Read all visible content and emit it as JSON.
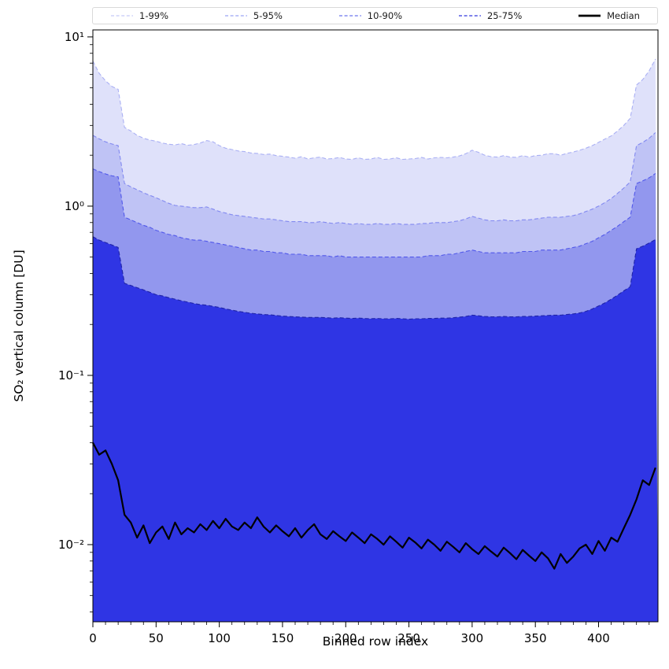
{
  "axes": {
    "xlabel": "Binned row index",
    "ylabel": "SO₂ vertical column [DU]"
  },
  "legend": [
    {
      "label": "1-99%",
      "color": "#c5caf7",
      "dash": true,
      "width": 1.3
    },
    {
      "label": "5-95%",
      "color": "#9ba3f3",
      "dash": true,
      "width": 1.3
    },
    {
      "label": "10-90%",
      "color": "#6a73ee",
      "dash": true,
      "width": 1.3
    },
    {
      "label": "25-75%",
      "color": "#3038dd",
      "dash": true,
      "width": 1.3
    },
    {
      "label": "Median",
      "color": "#000000",
      "dash": false,
      "width": 2.8
    }
  ],
  "chart_data": {
    "type": "area",
    "title": "",
    "xlabel": "Binned row index",
    "ylabel": "SO₂ vertical column [DU]",
    "yscale": "log",
    "grid": false,
    "legend_position": "top",
    "xlim": [
      0,
      447
    ],
    "ylim": [
      0.0035,
      11
    ],
    "x_ticks": [
      0,
      50,
      100,
      150,
      200,
      250,
      300,
      350,
      400
    ],
    "y_ticks": [
      {
        "value": 0.01,
        "label": "10⁻²"
      },
      {
        "value": 0.1,
        "label": "10⁻¹"
      },
      {
        "value": 1,
        "label": "10⁰"
      },
      {
        "value": 10,
        "label": "10¹"
      }
    ],
    "x": [
      0,
      5,
      10,
      15,
      20,
      25,
      30,
      35,
      40,
      45,
      50,
      55,
      60,
      65,
      70,
      75,
      80,
      85,
      90,
      95,
      100,
      105,
      110,
      115,
      120,
      125,
      130,
      135,
      140,
      145,
      150,
      155,
      160,
      165,
      170,
      175,
      180,
      185,
      190,
      195,
      200,
      205,
      210,
      215,
      220,
      225,
      230,
      235,
      240,
      245,
      250,
      255,
      260,
      265,
      270,
      275,
      280,
      285,
      290,
      295,
      300,
      305,
      310,
      315,
      320,
      325,
      330,
      335,
      340,
      345,
      350,
      355,
      360,
      365,
      370,
      375,
      380,
      385,
      390,
      395,
      400,
      405,
      410,
      415,
      420,
      425,
      430,
      435,
      440,
      445
    ],
    "series": [
      {
        "name": "1-99% upper",
        "legend": "1-99%",
        "fill": "#dfe1fa",
        "edge": "#aab0f4",
        "values": [
          7.2,
          6.1,
          5.5,
          5.1,
          4.9,
          2.92,
          2.78,
          2.62,
          2.52,
          2.46,
          2.42,
          2.36,
          2.32,
          2.3,
          2.34,
          2.29,
          2.31,
          2.36,
          2.44,
          2.4,
          2.28,
          2.2,
          2.16,
          2.12,
          2.1,
          2.06,
          2.05,
          2.02,
          2.03,
          1.99,
          1.97,
          1.95,
          1.92,
          1.96,
          1.9,
          1.93,
          1.95,
          1.9,
          1.91,
          1.94,
          1.9,
          1.89,
          1.93,
          1.89,
          1.9,
          1.94,
          1.89,
          1.9,
          1.93,
          1.89,
          1.9,
          1.91,
          1.94,
          1.9,
          1.93,
          1.94,
          1.93,
          1.95,
          1.98,
          2.04,
          2.14,
          2.08,
          2.0,
          1.96,
          1.95,
          1.99,
          1.95,
          1.94,
          1.99,
          1.95,
          1.99,
          2.0,
          2.04,
          2.04,
          2.0,
          2.05,
          2.09,
          2.14,
          2.2,
          2.28,
          2.38,
          2.49,
          2.6,
          2.78,
          3.0,
          3.3,
          5.2,
          5.6,
          6.3,
          7.4
        ]
      },
      {
        "name": "5-95% upper",
        "legend": "5-95%",
        "fill": "#bfc3f5",
        "edge": "#8289f0",
        "values": [
          2.62,
          2.5,
          2.4,
          2.33,
          2.28,
          1.36,
          1.3,
          1.25,
          1.2,
          1.16,
          1.12,
          1.08,
          1.04,
          1.01,
          1.0,
          0.99,
          0.98,
          0.98,
          0.99,
          0.96,
          0.93,
          0.91,
          0.89,
          0.88,
          0.87,
          0.86,
          0.85,
          0.84,
          0.84,
          0.83,
          0.82,
          0.81,
          0.81,
          0.81,
          0.8,
          0.8,
          0.81,
          0.8,
          0.79,
          0.8,
          0.79,
          0.78,
          0.79,
          0.78,
          0.78,
          0.79,
          0.78,
          0.78,
          0.79,
          0.78,
          0.78,
          0.78,
          0.79,
          0.79,
          0.8,
          0.8,
          0.8,
          0.81,
          0.82,
          0.84,
          0.87,
          0.85,
          0.83,
          0.82,
          0.82,
          0.83,
          0.82,
          0.82,
          0.83,
          0.83,
          0.84,
          0.85,
          0.86,
          0.86,
          0.86,
          0.87,
          0.88,
          0.9,
          0.93,
          0.96,
          1.0,
          1.05,
          1.11,
          1.19,
          1.28,
          1.39,
          2.28,
          2.38,
          2.52,
          2.72
        ]
      },
      {
        "name": "10-90% upper",
        "legend": "10-90%",
        "fill": "#9297ee",
        "edge": "#5158ea",
        "values": [
          1.66,
          1.6,
          1.55,
          1.51,
          1.49,
          0.86,
          0.83,
          0.8,
          0.77,
          0.75,
          0.72,
          0.7,
          0.68,
          0.67,
          0.65,
          0.64,
          0.63,
          0.63,
          0.62,
          0.61,
          0.6,
          0.59,
          0.58,
          0.57,
          0.56,
          0.55,
          0.55,
          0.54,
          0.54,
          0.53,
          0.53,
          0.52,
          0.52,
          0.52,
          0.51,
          0.51,
          0.51,
          0.51,
          0.5,
          0.51,
          0.5,
          0.5,
          0.5,
          0.5,
          0.5,
          0.5,
          0.5,
          0.5,
          0.5,
          0.5,
          0.5,
          0.5,
          0.5,
          0.51,
          0.51,
          0.51,
          0.52,
          0.52,
          0.53,
          0.54,
          0.55,
          0.54,
          0.53,
          0.53,
          0.53,
          0.53,
          0.53,
          0.53,
          0.54,
          0.54,
          0.54,
          0.55,
          0.55,
          0.55,
          0.55,
          0.56,
          0.57,
          0.58,
          0.6,
          0.62,
          0.65,
          0.68,
          0.72,
          0.76,
          0.81,
          0.86,
          1.36,
          1.41,
          1.47,
          1.56
        ]
      },
      {
        "name": "25-75% upper",
        "legend": "25-75%",
        "fill": "#2f35e4",
        "edge": "#1f24a8",
        "values": [
          0.66,
          0.63,
          0.61,
          0.59,
          0.57,
          0.35,
          0.34,
          0.33,
          0.32,
          0.31,
          0.3,
          0.295,
          0.288,
          0.282,
          0.276,
          0.271,
          0.266,
          0.262,
          0.26,
          0.256,
          0.252,
          0.247,
          0.243,
          0.239,
          0.236,
          0.233,
          0.231,
          0.229,
          0.228,
          0.226,
          0.224,
          0.223,
          0.222,
          0.221,
          0.22,
          0.22,
          0.22,
          0.219,
          0.218,
          0.219,
          0.218,
          0.217,
          0.218,
          0.217,
          0.216,
          0.217,
          0.216,
          0.216,
          0.217,
          0.216,
          0.215,
          0.216,
          0.216,
          0.217,
          0.217,
          0.218,
          0.218,
          0.219,
          0.221,
          0.223,
          0.227,
          0.225,
          0.223,
          0.222,
          0.222,
          0.223,
          0.222,
          0.222,
          0.223,
          0.223,
          0.224,
          0.225,
          0.226,
          0.227,
          0.227,
          0.229,
          0.231,
          0.234,
          0.239,
          0.247,
          0.257,
          0.268,
          0.282,
          0.298,
          0.316,
          0.334,
          0.56,
          0.58,
          0.605,
          0.635
        ]
      },
      {
        "name": "Median",
        "legend": "Median",
        "line": true,
        "color": "#000000",
        "width": 2.2,
        "values": [
          0.04,
          0.034,
          0.036,
          0.03,
          0.024,
          0.015,
          0.0135,
          0.011,
          0.013,
          0.0102,
          0.0118,
          0.0128,
          0.0108,
          0.0135,
          0.0115,
          0.0125,
          0.0118,
          0.0132,
          0.0122,
          0.0138,
          0.0125,
          0.0142,
          0.0128,
          0.0122,
          0.0135,
          0.0125,
          0.0145,
          0.0128,
          0.0118,
          0.013,
          0.012,
          0.0112,
          0.0125,
          0.011,
          0.0122,
          0.0132,
          0.0115,
          0.0108,
          0.012,
          0.0112,
          0.0105,
          0.0118,
          0.011,
          0.0102,
          0.0115,
          0.0108,
          0.01,
          0.0112,
          0.0104,
          0.0096,
          0.011,
          0.0103,
          0.0095,
          0.0107,
          0.01,
          0.0092,
          0.0104,
          0.0097,
          0.009,
          0.0102,
          0.0094,
          0.0088,
          0.0098,
          0.0091,
          0.0085,
          0.0096,
          0.0089,
          0.0082,
          0.0093,
          0.0086,
          0.008,
          0.009,
          0.0083,
          0.0072,
          0.0088,
          0.0078,
          0.0085,
          0.0095,
          0.01,
          0.0088,
          0.0105,
          0.0092,
          0.011,
          0.0104,
          0.0125,
          0.015,
          0.0185,
          0.024,
          0.0225,
          0.0285
        ]
      }
    ]
  }
}
